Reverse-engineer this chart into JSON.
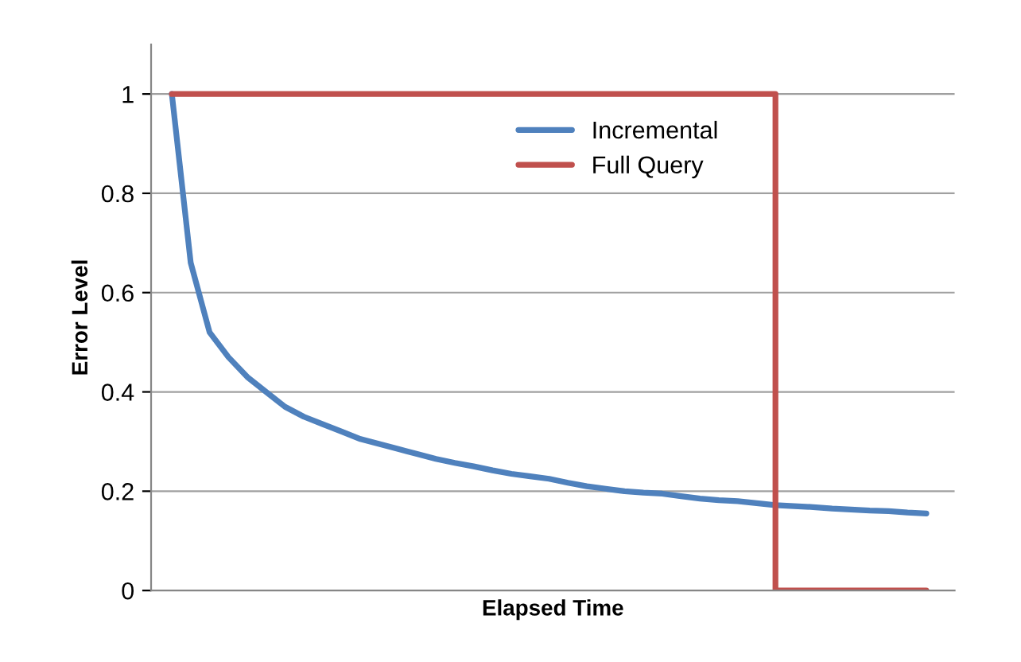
{
  "chart_data": {
    "type": "line",
    "xlabel": "Elapsed Time",
    "ylabel": "Error Level",
    "categories": [
      null,
      null,
      null,
      null,
      null,
      null,
      null,
      null,
      null,
      null,
      null,
      null,
      null,
      null,
      null,
      null,
      null,
      null,
      null,
      null,
      null,
      null,
      null,
      null,
      null,
      null,
      null,
      null,
      null,
      null,
      null,
      null,
      null,
      null,
      null,
      null,
      null,
      null,
      null,
      null,
      null
    ],
    "series": [
      {
        "name": "Incremental",
        "color": "#4f81bd",
        "values": [
          1.0,
          0.66,
          0.52,
          0.47,
          0.43,
          0.4,
          0.37,
          0.35,
          0.335,
          0.32,
          0.305,
          0.295,
          0.285,
          0.275,
          0.265,
          0.257,
          0.25,
          0.242,
          0.235,
          0.23,
          0.225,
          0.217,
          0.21,
          0.205,
          0.2,
          0.197,
          0.195,
          0.19,
          0.185,
          0.182,
          0.18,
          0.176,
          0.172,
          0.17,
          0.168,
          0.165,
          0.163,
          0.161,
          0.16,
          0.157,
          0.155
        ]
      },
      {
        "name": "Full Query",
        "type": "step",
        "color": "#c0504d",
        "values": [
          1,
          1,
          1,
          1,
          1,
          1,
          1,
          1,
          1,
          1,
          1,
          1,
          1,
          1,
          1,
          1,
          1,
          1,
          1,
          1,
          1,
          1,
          1,
          1,
          1,
          1,
          1,
          1,
          1,
          1,
          1,
          1,
          0,
          0,
          0,
          0,
          0,
          0,
          0,
          0,
          0
        ]
      }
    ],
    "ylim": [
      0,
      1.1
    ],
    "yticks": [
      0,
      0.2,
      0.4,
      0.6,
      0.8,
      1
    ],
    "grid": "y",
    "legend": "top",
    "tick_labels": "y"
  }
}
